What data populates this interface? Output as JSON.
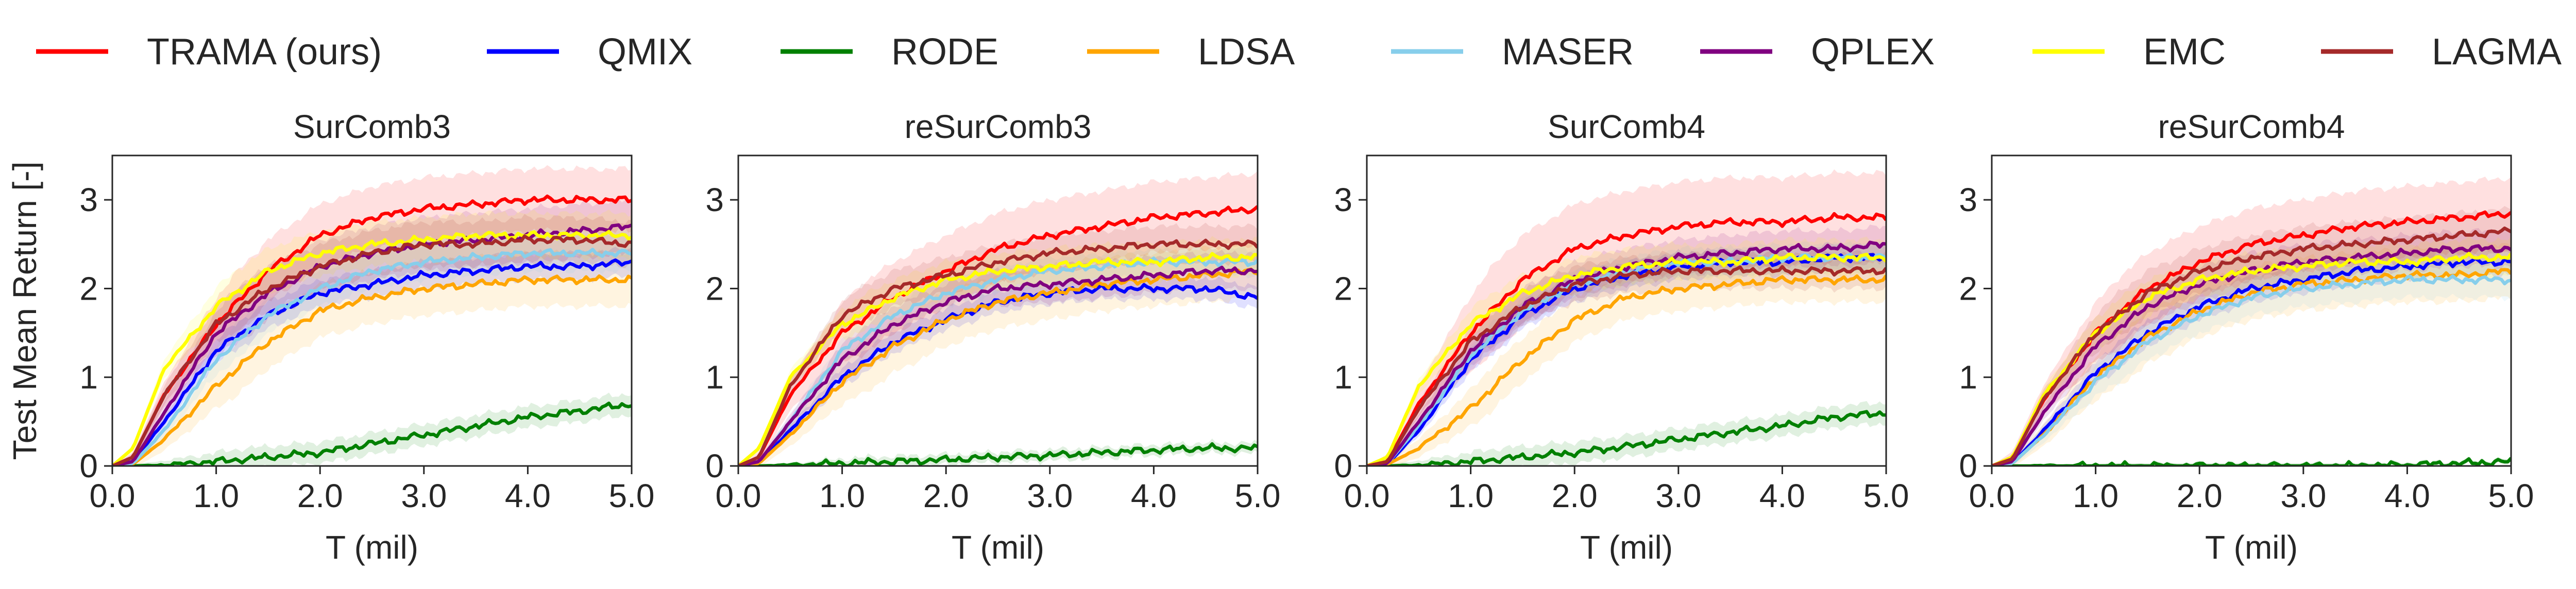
{
  "legend": [
    {
      "name": "TRAMA (ours)",
      "color": "#ff0000"
    },
    {
      "name": "QMIX",
      "color": "#0000ff"
    },
    {
      "name": "RODE",
      "color": "#008000"
    },
    {
      "name": "LDSA",
      "color": "#ffa500"
    },
    {
      "name": "MASER",
      "color": "#87ceeb"
    },
    {
      "name": "QPLEX",
      "color": "#800080"
    },
    {
      "name": "EMC",
      "color": "#ffff00"
    },
    {
      "name": "LAGMA",
      "color": "#a52a2a"
    }
  ],
  "chart_data": [
    {
      "type": "line",
      "title": "SurComb3",
      "xlabel": "T (mil)",
      "ylabel": "Test Mean Return [-]",
      "xlim": [
        0,
        5
      ],
      "ylim": [
        0,
        3.5
      ],
      "xticks": [
        "0.0",
        "1.0",
        "2.0",
        "3.0",
        "4.0",
        "5.0"
      ],
      "yticks": [
        "0",
        "1",
        "2",
        "3"
      ],
      "x": [
        0,
        0.2,
        0.5,
        1.0,
        1.5,
        2.0,
        2.5,
        3.0,
        3.5,
        4.0,
        4.5,
        5.0
      ],
      "series": [
        {
          "name": "TRAMA (ours)",
          "values": [
            0,
            0.1,
            0.8,
            1.6,
            2.2,
            2.6,
            2.8,
            2.9,
            2.95,
            3.0,
            3.0,
            3.0
          ],
          "band": 0.35
        },
        {
          "name": "QMIX",
          "values": [
            0,
            0.05,
            0.5,
            1.3,
            1.7,
            1.95,
            2.05,
            2.15,
            2.2,
            2.25,
            2.25,
            2.3
          ],
          "band": 0.15
        },
        {
          "name": "RODE",
          "values": [
            0,
            0,
            0.01,
            0.05,
            0.1,
            0.15,
            0.25,
            0.35,
            0.45,
            0.55,
            0.62,
            0.7
          ],
          "band": 0.12
        },
        {
          "name": "LDSA",
          "values": [
            0,
            0.02,
            0.3,
            0.9,
            1.4,
            1.75,
            1.9,
            2.0,
            2.05,
            2.1,
            2.1,
            2.1
          ],
          "band": 0.3
        },
        {
          "name": "MASER",
          "values": [
            0,
            0.03,
            0.4,
            1.2,
            1.7,
            2.0,
            2.2,
            2.3,
            2.35,
            2.4,
            2.4,
            2.4
          ],
          "band": 0.2
        },
        {
          "name": "QPLEX",
          "values": [
            0,
            0.05,
            0.6,
            1.5,
            1.95,
            2.25,
            2.4,
            2.5,
            2.55,
            2.6,
            2.65,
            2.7
          ],
          "band": 0.3
        },
        {
          "name": "EMC",
          "values": [
            0,
            0.2,
            1.1,
            1.8,
            2.2,
            2.4,
            2.5,
            2.55,
            2.6,
            2.6,
            2.6,
            2.6
          ],
          "band": 0.25
        },
        {
          "name": "LAGMA",
          "values": [
            0,
            0.1,
            0.8,
            1.6,
            2.0,
            2.25,
            2.4,
            2.5,
            2.5,
            2.55,
            2.55,
            2.5
          ],
          "band": 0.25
        }
      ]
    },
    {
      "type": "line",
      "title": "reSurComb3",
      "xlabel": "T (mil)",
      "ylabel": "",
      "xlim": [
        0,
        5
      ],
      "ylim": [
        0,
        3.5
      ],
      "xticks": [
        "0.0",
        "1.0",
        "2.0",
        "3.0",
        "4.0",
        "5.0"
      ],
      "yticks": [
        "0",
        "1",
        "2",
        "3"
      ],
      "x": [
        0,
        0.2,
        0.5,
        1.0,
        1.5,
        2.0,
        2.5,
        3.0,
        3.5,
        4.0,
        4.5,
        5.0
      ],
      "series": [
        {
          "name": "TRAMA (ours)",
          "values": [
            0,
            0.1,
            0.8,
            1.5,
            1.9,
            2.2,
            2.45,
            2.6,
            2.7,
            2.8,
            2.85,
            2.9
          ],
          "band": 0.4
        },
        {
          "name": "QMIX",
          "values": [
            0,
            0.05,
            0.4,
            1.0,
            1.4,
            1.65,
            1.85,
            1.95,
            2.0,
            2.0,
            2.0,
            1.9
          ],
          "band": 0.12
        },
        {
          "name": "RODE",
          "values": [
            0,
            0,
            0.01,
            0.03,
            0.05,
            0.07,
            0.1,
            0.12,
            0.15,
            0.18,
            0.2,
            0.2
          ],
          "band": 0.06
        },
        {
          "name": "LDSA",
          "values": [
            0,
            0.03,
            0.35,
            0.95,
            1.35,
            1.65,
            1.85,
            1.95,
            2.05,
            2.1,
            2.15,
            2.2
          ],
          "band": 0.3
        },
        {
          "name": "MASER",
          "values": [
            0,
            0.05,
            0.5,
            1.3,
            1.7,
            1.95,
            2.1,
            2.2,
            2.25,
            2.3,
            2.3,
            2.3
          ],
          "band": 0.15
        },
        {
          "name": "QPLEX",
          "values": [
            0,
            0.05,
            0.5,
            1.2,
            1.6,
            1.85,
            2.0,
            2.05,
            2.1,
            2.15,
            2.2,
            2.2
          ],
          "band": 0.2
        },
        {
          "name": "EMC",
          "values": [
            0,
            0.2,
            1.0,
            1.6,
            1.9,
            2.1,
            2.2,
            2.25,
            2.3,
            2.3,
            2.35,
            2.35
          ],
          "band": 0.2
        },
        {
          "name": "LAGMA",
          "values": [
            0,
            0.1,
            0.9,
            1.7,
            2.0,
            2.15,
            2.3,
            2.4,
            2.45,
            2.5,
            2.5,
            2.5
          ],
          "band": 0.2
        }
      ]
    },
    {
      "type": "line",
      "title": "SurComb4",
      "xlabel": "T (mil)",
      "ylabel": "",
      "xlim": [
        0,
        5
      ],
      "ylim": [
        0,
        3.5
      ],
      "xticks": [
        "0.0",
        "1.0",
        "2.0",
        "3.0",
        "4.0",
        "5.0"
      ],
      "yticks": [
        "0",
        "1",
        "2",
        "3"
      ],
      "x": [
        0,
        0.2,
        0.5,
        1.0,
        1.5,
        2.0,
        2.5,
        3.0,
        3.5,
        4.0,
        4.5,
        5.0
      ],
      "series": [
        {
          "name": "TRAMA (ours)",
          "values": [
            0,
            0.05,
            0.7,
            1.5,
            2.1,
            2.45,
            2.6,
            2.7,
            2.75,
            2.75,
            2.8,
            2.8
          ],
          "band": 0.5
        },
        {
          "name": "QMIX",
          "values": [
            0,
            0.02,
            0.4,
            1.2,
            1.7,
            2.0,
            2.15,
            2.25,
            2.3,
            2.3,
            2.35,
            2.35
          ],
          "band": 0.15
        },
        {
          "name": "RODE",
          "values": [
            0,
            0,
            0.01,
            0.05,
            0.1,
            0.15,
            0.22,
            0.3,
            0.38,
            0.45,
            0.55,
            0.6
          ],
          "band": 0.12
        },
        {
          "name": "LDSA",
          "values": [
            0,
            0.02,
            0.2,
            0.65,
            1.2,
            1.65,
            1.9,
            2.0,
            2.05,
            2.1,
            2.1,
            2.1
          ],
          "band": 0.25
        },
        {
          "name": "MASER",
          "values": [
            0,
            0.03,
            0.45,
            1.25,
            1.75,
            2.05,
            2.2,
            2.3,
            2.3,
            2.35,
            2.35,
            2.35
          ],
          "band": 0.15
        },
        {
          "name": "QPLEX",
          "values": [
            0,
            0.03,
            0.5,
            1.3,
            1.8,
            2.1,
            2.25,
            2.35,
            2.4,
            2.45,
            2.45,
            2.5
          ],
          "band": 0.2
        },
        {
          "name": "EMC",
          "values": [
            0,
            0.1,
            0.9,
            1.6,
            1.95,
            2.15,
            2.25,
            2.3,
            2.3,
            2.35,
            2.35,
            2.35
          ],
          "band": 0.2
        },
        {
          "name": "LAGMA",
          "values": [
            0,
            0.05,
            0.65,
            1.4,
            1.8,
            2.05,
            2.15,
            2.2,
            2.2,
            2.2,
            2.2,
            2.2
          ],
          "band": 0.2
        }
      ]
    },
    {
      "type": "line",
      "title": "reSurComb4",
      "xlabel": "T (mil)",
      "ylabel": "",
      "xlim": [
        0,
        5
      ],
      "ylim": [
        0,
        3.5
      ],
      "xticks": [
        "0.0",
        "1.0",
        "2.0",
        "3.0",
        "4.0",
        "5.0"
      ],
      "yticks": [
        "0",
        "1",
        "2",
        "3"
      ],
      "x": [
        0,
        0.2,
        0.5,
        1.0,
        1.5,
        2.0,
        2.5,
        3.0,
        3.5,
        4.0,
        4.5,
        5.0
      ],
      "series": [
        {
          "name": "TRAMA (ours)",
          "values": [
            0,
            0.1,
            0.75,
            1.5,
            2.0,
            2.3,
            2.5,
            2.6,
            2.7,
            2.75,
            2.8,
            2.85
          ],
          "band": 0.4
        },
        {
          "name": "QMIX",
          "values": [
            0,
            0.03,
            0.4,
            1.05,
            1.5,
            1.8,
            2.0,
            2.1,
            2.2,
            2.25,
            2.3,
            2.3
          ],
          "band": 0.15
        },
        {
          "name": "RODE",
          "values": [
            0,
            0,
            0,
            0,
            0,
            0,
            0,
            0,
            0,
            0.01,
            0.03,
            0.05
          ],
          "band": 0.03
        },
        {
          "name": "LDSA",
          "values": [
            0,
            0.03,
            0.35,
            1.0,
            1.45,
            1.75,
            1.95,
            2.05,
            2.1,
            2.15,
            2.15,
            2.2
          ],
          "band": 0.3
        },
        {
          "name": "MASER",
          "values": [
            0,
            0.03,
            0.35,
            0.95,
            1.4,
            1.7,
            1.9,
            2.0,
            2.05,
            2.1,
            2.1,
            2.1
          ],
          "band": 0.2
        },
        {
          "name": "QPLEX",
          "values": [
            0,
            0.05,
            0.6,
            1.35,
            1.8,
            2.05,
            2.2,
            2.3,
            2.35,
            2.4,
            2.45,
            2.45
          ],
          "band": 0.2
        },
        {
          "name": "EMC",
          "values": [
            0,
            0.1,
            0.8,
            1.5,
            1.9,
            2.1,
            2.2,
            2.25,
            2.3,
            2.3,
            2.35,
            2.35
          ],
          "band": 0.2
        },
        {
          "name": "LAGMA",
          "values": [
            0,
            0.08,
            0.75,
            1.5,
            1.95,
            2.2,
            2.35,
            2.45,
            2.5,
            2.55,
            2.6,
            2.65
          ],
          "band": 0.25
        }
      ]
    }
  ]
}
